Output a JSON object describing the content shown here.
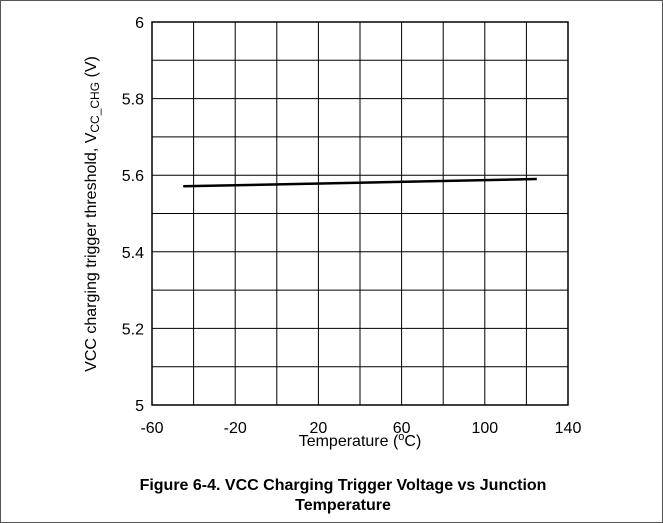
{
  "chart_data": {
    "type": "line",
    "x_label": [
      "Temperature (",
      "o",
      "C)"
    ],
    "y_label": [
      "VCC charging trigger threshold, V",
      "CC_CHG",
      " (V)"
    ],
    "caption": [
      "Figure 6-4. VCC Charging Trigger Voltage vs Junction",
      "Temperature"
    ],
    "x": [
      -45,
      125
    ],
    "series": [
      {
        "color": "#000000",
        "values": [
          5.571,
          5.59
        ]
      }
    ],
    "xlim": [
      -60,
      140
    ],
    "xticks": [
      -60,
      -20,
      20,
      60,
      100,
      140
    ],
    "xminor": [
      -40,
      0,
      40,
      80,
      120
    ],
    "ylim": [
      5,
      6
    ],
    "yticks": [
      5,
      5.2,
      5.4,
      5.6,
      5.8,
      6
    ],
    "yminor": [
      5.1,
      5.3,
      5.5,
      5.7,
      5.9
    ],
    "grid": true
  }
}
